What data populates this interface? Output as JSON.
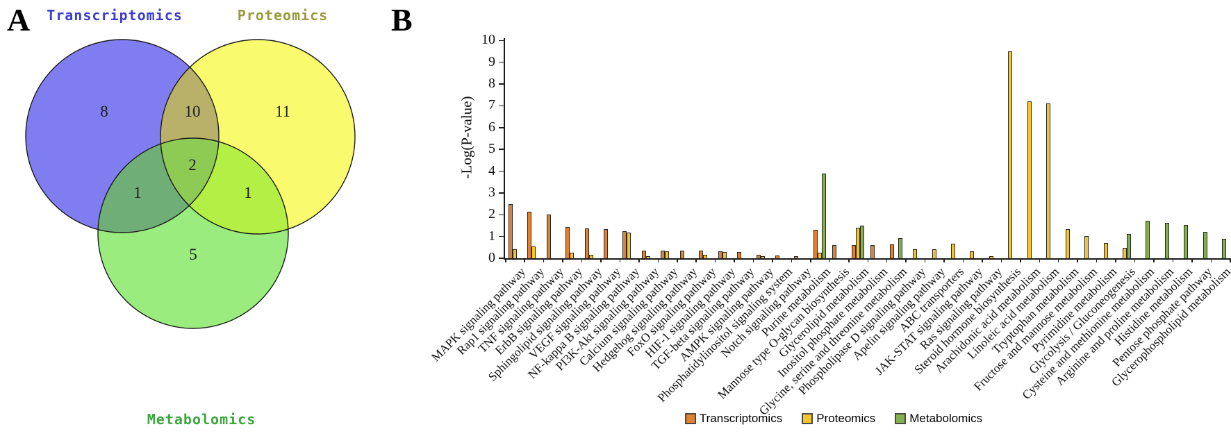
{
  "venn": {
    "panel_label": "A",
    "sets": [
      {
        "label": "Transcriptomics",
        "label_color": "#3c3ccd",
        "fill": "#807df0"
      },
      {
        "label": "Proteomics",
        "label_color": "#9a9a3c",
        "fill": "#fafa6e"
      },
      {
        "label": "Metabolomics",
        "label_color": "#3da53d",
        "fill": "#99ec7d"
      }
    ],
    "overlap_fills": {
      "tp": "#b9b169",
      "tm": "#70ae77",
      "pm": "#b3ef45",
      "tpm": "#8ecb55"
    },
    "counts": {
      "t_only": "8",
      "tp": "10",
      "p_only": "11",
      "tpm": "2",
      "tm": "1",
      "pm": "1",
      "m_only": "5"
    }
  },
  "panel_b": {
    "label": "B"
  },
  "chart_data": {
    "type": "bar",
    "title": "",
    "xlabel": "",
    "ylabel": "-Log(P-value)",
    "ylim": [
      0,
      10
    ],
    "yticks": [
      0,
      1,
      2,
      3,
      4,
      5,
      6,
      7,
      8,
      9,
      10
    ],
    "grid": false,
    "legend_position": "bottom",
    "categories": [
      "MAPK signaling pathway",
      "Rap1 signaling pathway",
      "TNF signaling pathway",
      "ErbB signaling pathway",
      "Sphingolipid signaling pathway",
      "VEGF signaling pathway",
      "NF-kappa B signaling pathway",
      "PI3K-Akt signaling pathway",
      "Calcium signaling pathway",
      "Hedgehog signaling pathway",
      "FoxO signaling pathway",
      "HIF-1 signaling pathway",
      "TGF-beta signaling pathway",
      "AMPK signaling pathway",
      "Phosphatidylinositol signaling system",
      "Notch signaling pathway",
      "Purine metabolism",
      "Mannose type O-glycan biosynthesis",
      "Glycerolipid metabolism",
      "Inositol phosphate metabolism",
      "Glycine, serine and threonine metabolism",
      "Phospholipase D signaling pathway",
      "Apelin signaling pathway",
      "ABC transporters",
      "JAK-STAT signaling pathway",
      "Ras signaling pathway",
      "Steroid hormone biosynthesis",
      "Arachidonic acid metabolism",
      "Linoleic acid metabolism",
      "Tryptophan metabolism",
      "Fructose and mannose metabolism",
      "Pyrimidine metabolism",
      "Glycolysis / Gluconeogenesis",
      "Cysteine and methionine metabolism",
      "Arginine and proline metabolism",
      "Histidine metabolism",
      "Pentose phosphate pathway",
      "Glycerophospholipid metabolism"
    ],
    "series": [
      {
        "name": "Transcriptomics",
        "color": "#e0812f",
        "values": [
          2.5,
          2.15,
          2.0,
          1.45,
          1.38,
          1.34,
          1.25,
          0.35,
          0.36,
          0.34,
          0.34,
          0.33,
          0.28,
          0.17,
          0.12,
          0.08,
          1.31,
          0.62,
          0.62,
          0.62,
          0.65,
          0,
          0,
          0,
          0,
          0,
          0,
          0,
          0,
          0,
          0,
          0,
          0,
          0,
          0,
          0,
          0,
          0
        ]
      },
      {
        "name": "Proteomics",
        "color": "#f5c42c",
        "values": [
          0.4,
          0.55,
          0,
          0.27,
          0.17,
          0,
          1.17,
          0.1,
          0.31,
          0,
          0.17,
          0.3,
          0,
          0.08,
          0,
          0,
          0.26,
          0,
          1.4,
          0,
          0,
          0.42,
          0.42,
          0.66,
          0.32,
          0.08,
          9.5,
          7.2,
          7.1,
          1.35,
          1.03,
          0.69,
          0.48,
          0,
          0,
          0,
          0,
          0
        ]
      },
      {
        "name": "Metabolomics",
        "color": "#86b04e",
        "values": [
          0,
          0,
          0,
          0,
          0,
          0,
          0,
          0,
          0,
          0,
          0,
          0,
          0,
          0,
          0,
          0,
          3.9,
          0,
          1.51,
          0,
          0.94,
          0,
          0,
          0,
          0,
          0,
          0,
          0,
          0,
          0,
          0,
          0,
          1.1,
          1.73,
          1.62,
          1.52,
          1.22,
          0.88
        ]
      }
    ]
  }
}
